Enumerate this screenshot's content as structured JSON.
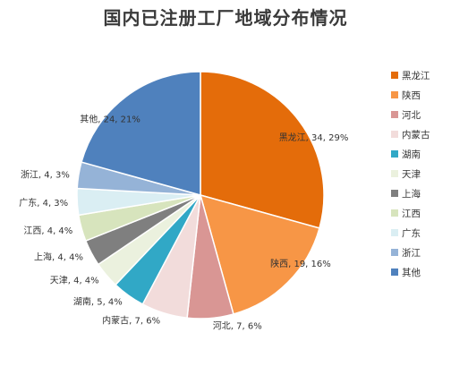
{
  "chart_data": {
    "type": "pie",
    "title": "国内已注册工厂地域分布情况",
    "legend_position": "right",
    "slices": [
      {
        "label": "黑龙江",
        "value": 34,
        "percent": "29%",
        "color": "#e46c0a"
      },
      {
        "label": "陕西",
        "value": 19,
        "percent": "16%",
        "color": "#f79646"
      },
      {
        "label": "河北",
        "value": 7,
        "percent": "6%",
        "color": "#d99694"
      },
      {
        "label": "内蒙古",
        "value": 7,
        "percent": "6%",
        "color": "#f2dcdb"
      },
      {
        "label": "湖南",
        "value": 5,
        "percent": "4%",
        "color": "#31a8c6"
      },
      {
        "label": "天津",
        "value": 4,
        "percent": "4%",
        "color": "#ebf1de"
      },
      {
        "label": "上海",
        "value": 4,
        "percent": "4%",
        "color": "#7f7f7f"
      },
      {
        "label": "江西",
        "value": 4,
        "percent": "4%",
        "color": "#d7e4bd"
      },
      {
        "label": "广东",
        "value": 4,
        "percent": "3%",
        "color": "#daeef3"
      },
      {
        "label": "浙江",
        "value": 4,
        "percent": "3%",
        "color": "#95b3d7"
      },
      {
        "label": "其他",
        "value": 24,
        "percent": "21%",
        "color": "#4f81bd"
      }
    ]
  }
}
